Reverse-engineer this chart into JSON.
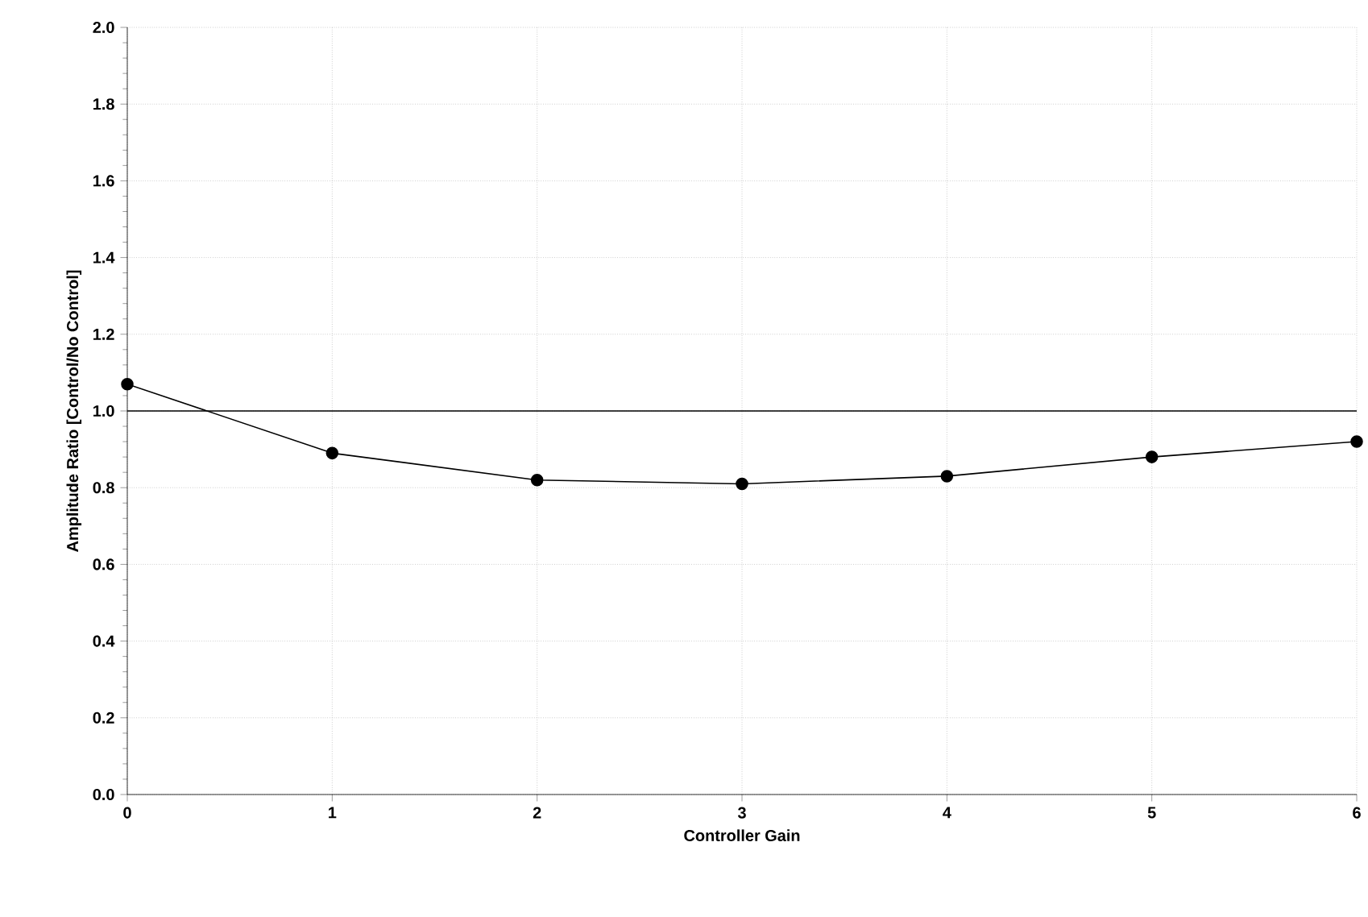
{
  "chart_data": {
    "type": "line",
    "xlabel": "Controller Gain",
    "ylabel": "Amplitude Ratio [Control/No Control]",
    "x": [
      0,
      1,
      2,
      3,
      4,
      5,
      6
    ],
    "series": [
      {
        "color": "#000000",
        "values": [
          1.07,
          0.89,
          0.82,
          0.81,
          0.83,
          0.88,
          0.92
        ]
      }
    ],
    "xlim": [
      0,
      6
    ],
    "xticks": [
      0,
      1,
      2,
      3,
      4,
      5,
      6
    ],
    "ylim": [
      0,
      2
    ],
    "yticks": [
      {
        "value": 0,
        "label": "0.0"
      },
      {
        "value": 0.2,
        "label": "0.2"
      },
      {
        "value": 0.4,
        "label": "0.4"
      },
      {
        "value": 0.6,
        "label": "0.6"
      },
      {
        "value": 0.8,
        "label": "0.8"
      },
      {
        "value": 1,
        "label": "1.0"
      },
      {
        "value": 1.2,
        "label": "1.2"
      },
      {
        "value": 1.4,
        "label": "1.4"
      },
      {
        "value": 1.6,
        "label": "1.6"
      },
      {
        "value": 1.8,
        "label": "1.8"
      },
      {
        "value": 2,
        "label": "2.0"
      }
    ],
    "ref_lines": [
      {
        "axis": "y",
        "value": 1,
        "color": "#000000"
      }
    ],
    "grid": true,
    "marker": "circle",
    "line_style": "solid"
  }
}
